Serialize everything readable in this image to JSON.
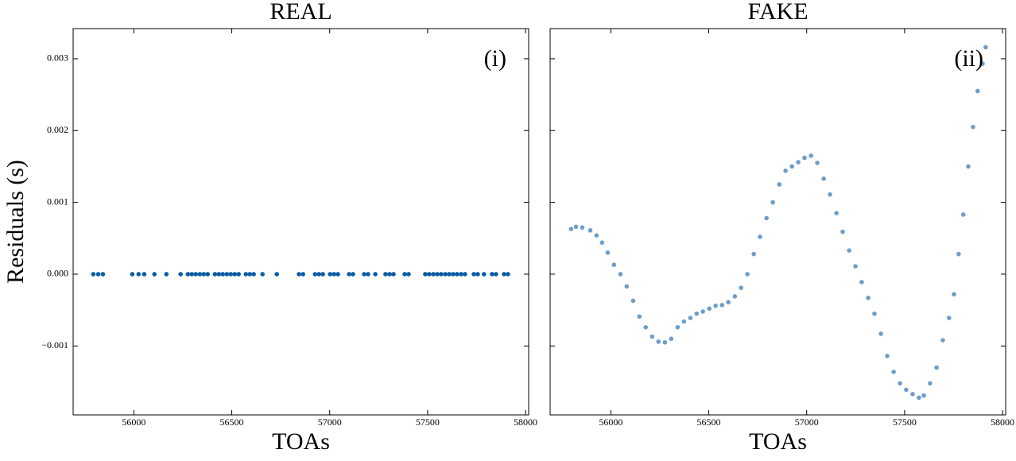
{
  "chart_data": [
    {
      "type": "scatter",
      "title": "REAL",
      "annotation": "(i)",
      "xlabel": "TOAs",
      "ylabel": "Residuals (s)",
      "color": "#0C5DA5",
      "alpha": 1,
      "x": [
        55793,
        55818,
        55842,
        55992,
        56024,
        56053,
        56105,
        56166,
        56239,
        56276,
        56296,
        56316,
        56337,
        56357,
        56377,
        56414,
        56434,
        56454,
        56475,
        56495,
        56515,
        56535,
        56572,
        56592,
        56612,
        56657,
        56730,
        56843,
        56864,
        56925,
        56945,
        56965,
        57002,
        57022,
        57042,
        57099,
        57119,
        57176,
        57196,
        57233,
        57285,
        57306,
        57326,
        57383,
        57403,
        57488,
        57508,
        57529,
        57549,
        57569,
        57590,
        57610,
        57630,
        57650,
        57671,
        57691,
        57736,
        57756,
        57788,
        57829,
        57849,
        57890,
        57910
      ],
      "values": [
        0,
        0,
        0,
        0,
        0,
        0,
        0,
        0,
        0,
        0,
        0,
        0,
        0,
        0,
        0,
        0,
        0,
        0,
        0,
        0,
        0,
        0,
        0,
        0,
        0,
        0,
        0,
        0,
        0,
        0,
        0,
        0,
        0,
        0,
        0,
        0,
        0,
        0,
        0,
        0,
        0,
        0,
        0,
        0,
        0,
        0,
        0,
        0,
        0,
        0,
        0,
        0,
        0,
        0,
        0,
        0,
        0,
        0,
        0,
        0,
        0,
        0,
        0
      ],
      "xlim": [
        55690,
        58016
      ],
      "ylim": [
        -0.00196,
        0.00342
      ],
      "xticks": [
        56000,
        56500,
        57000,
        57500,
        58000
      ],
      "yticks": [
        {
          "value": -0.001,
          "label": "−0.001"
        },
        {
          "value": 0,
          "label": "0.000"
        },
        {
          "value": 0.001,
          "label": "0.001"
        },
        {
          "value": 0.002,
          "label": "0.002"
        },
        {
          "value": 0.003,
          "label": "0.003"
        }
      ]
    },
    {
      "type": "scatter",
      "title": "FAKE",
      "annotation": "(ii)",
      "xlabel": "TOAs",
      "color": "#0C5DA5",
      "alpha": 0.6,
      "x": [
        55797,
        55822,
        55854,
        55895,
        55927,
        55955,
        55984,
        56016,
        56049,
        56081,
        56114,
        56146,
        56178,
        56211,
        56243,
        56276,
        56308,
        56341,
        56373,
        56406,
        56438,
        56470,
        56503,
        56535,
        56568,
        56600,
        56633,
        56665,
        56697,
        56730,
        56762,
        56795,
        56827,
        56860,
        56892,
        56925,
        56957,
        56989,
        57022,
        57054,
        57087,
        57119,
        57152,
        57184,
        57217,
        57249,
        57281,
        57314,
        57346,
        57379,
        57411,
        57444,
        57476,
        57508,
        57541,
        57573,
        57598,
        57630,
        57663,
        57695,
        57727,
        57752,
        57776,
        57800,
        57825,
        57849,
        57873,
        57898,
        57914
      ],
      "values": [
        0.00063,
        0.00066,
        0.00065,
        0.00061,
        0.00054,
        0.00044,
        0.0003,
        0.00013,
        0,
        -0.00017,
        -0.00037,
        -0.00059,
        -0.00074,
        -0.00087,
        -0.00094,
        -0.00095,
        -0.0009,
        -0.00074,
        -0.00066,
        -0.00061,
        -0.00055,
        -0.00052,
        -0.00048,
        -0.00044,
        -0.00043,
        -0.00039,
        -0.00031,
        -0.00019,
        0,
        0.00028,
        0.00052,
        0.00078,
        0.001,
        0.00125,
        0.00144,
        0.0015,
        0.00156,
        0.00162,
        0.00165,
        0.00155,
        0.00133,
        0.00111,
        0.00085,
        0.00059,
        0.00033,
        0.00011,
        -0.00011,
        -0.00033,
        -0.00055,
        -0.00083,
        -0.00114,
        -0.00136,
        -0.00152,
        -0.00161,
        -0.00167,
        -0.00172,
        -0.00169,
        -0.00152,
        -0.0013,
        -0.00092,
        -0.00061,
        -0.00028,
        0.00028,
        0.00083,
        0.0015,
        0.00205,
        0.00255,
        0.00293,
        0.00316
      ],
      "xlim": [
        55690,
        58016
      ],
      "ylim": [
        -0.00196,
        0.00342
      ],
      "xticks": [
        56000,
        56500,
        57000,
        57500,
        58000
      ]
    }
  ]
}
